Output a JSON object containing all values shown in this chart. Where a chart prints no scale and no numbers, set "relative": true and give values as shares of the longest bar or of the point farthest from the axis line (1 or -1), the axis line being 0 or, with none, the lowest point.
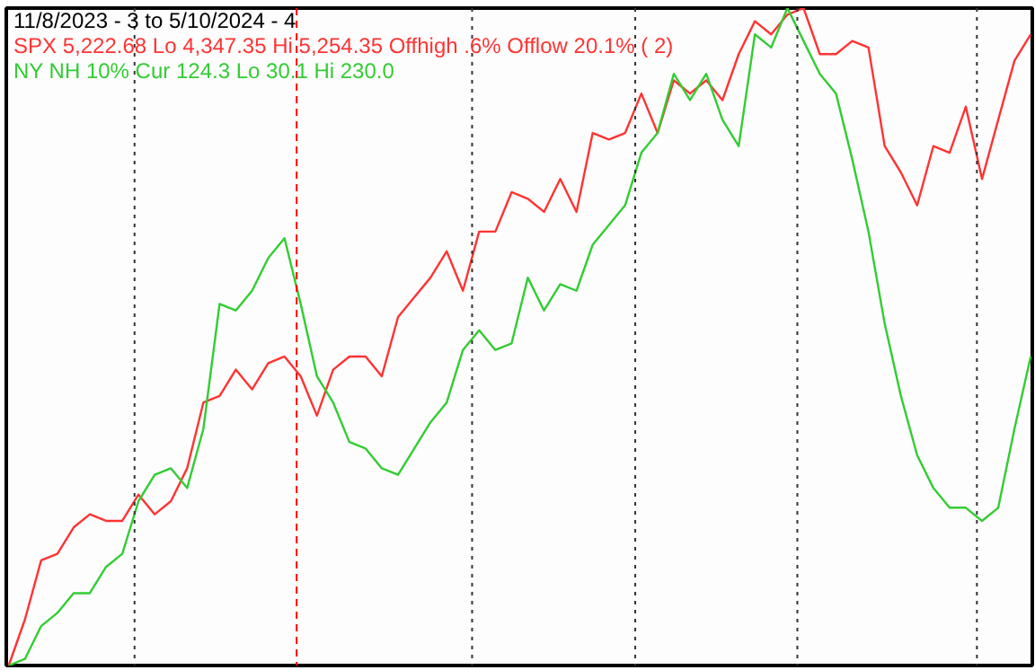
{
  "chart_data": {
    "type": "line",
    "title": "11/8/2023 - 3 to 5/10/2024 - 4",
    "categories": [
      null,
      null,
      null,
      null,
      null,
      null,
      null,
      null,
      null,
      null,
      null,
      null,
      null,
      null,
      null,
      null,
      null,
      null,
      null,
      null,
      null,
      null,
      null,
      null,
      null,
      null,
      null,
      null,
      null,
      null,
      null,
      null,
      null,
      null,
      null,
      null,
      null,
      null,
      null,
      null,
      null,
      null,
      null,
      null,
      null,
      null,
      null,
      null,
      null,
      null,
      null,
      null,
      null,
      null,
      null,
      null,
      null,
      null,
      null,
      null,
      null,
      null,
      null,
      null
    ],
    "relative": true,
    "series": [
      {
        "name": "SPX 5,222.68 Lo 4,347.35 Hi 5,254.35  Offhigh .6%  Offlow 20.1% ( 2)",
        "color": "#ff3333",
        "values": [
          0,
          0.07,
          0.16,
          0.17,
          0.21,
          0.23,
          0.22,
          0.22,
          0.26,
          0.23,
          0.25,
          0.3,
          0.4,
          0.41,
          0.45,
          0.42,
          0.46,
          0.47,
          0.44,
          0.38,
          0.45,
          0.47,
          0.47,
          0.44,
          0.53,
          0.56,
          0.59,
          0.63,
          0.57,
          0.66,
          0.66,
          0.72,
          0.71,
          0.69,
          0.74,
          0.69,
          0.81,
          0.8,
          0.81,
          0.87,
          0.81,
          0.89,
          0.87,
          0.89,
          0.86,
          0.93,
          0.98,
          0.96,
          0.99,
          1,
          0.93,
          0.93,
          0.95,
          0.94,
          0.79,
          0.75,
          0.7,
          0.79,
          0.78,
          0.85,
          0.74,
          0.83,
          0.92,
          0.96
        ]
      },
      {
        "name": "NY NH 10% Cur 124.3 Lo 30.1 Hi 230.0",
        "color": "#33cc33",
        "values": [
          0,
          0.01,
          0.06,
          0.08,
          0.11,
          0.11,
          0.15,
          0.17,
          0.25,
          0.29,
          0.3,
          0.27,
          0.36,
          0.55,
          0.54,
          0.57,
          0.62,
          0.65,
          0.55,
          0.44,
          0.4,
          0.34,
          0.33,
          0.3,
          0.29,
          0.33,
          0.37,
          0.4,
          0.48,
          0.51,
          0.48,
          0.49,
          0.59,
          0.54,
          0.58,
          0.57,
          0.64,
          0.67,
          0.7,
          0.78,
          0.81,
          0.9,
          0.86,
          0.9,
          0.83,
          0.79,
          0.96,
          0.94,
          1,
          0.95,
          0.9,
          0.87,
          0.77,
          0.66,
          0.52,
          0.41,
          0.32,
          0.27,
          0.24,
          0.24,
          0.22,
          0.24,
          0.36,
          0.47
        ]
      }
    ],
    "tick_labels": false,
    "legend": "top left"
  }
}
